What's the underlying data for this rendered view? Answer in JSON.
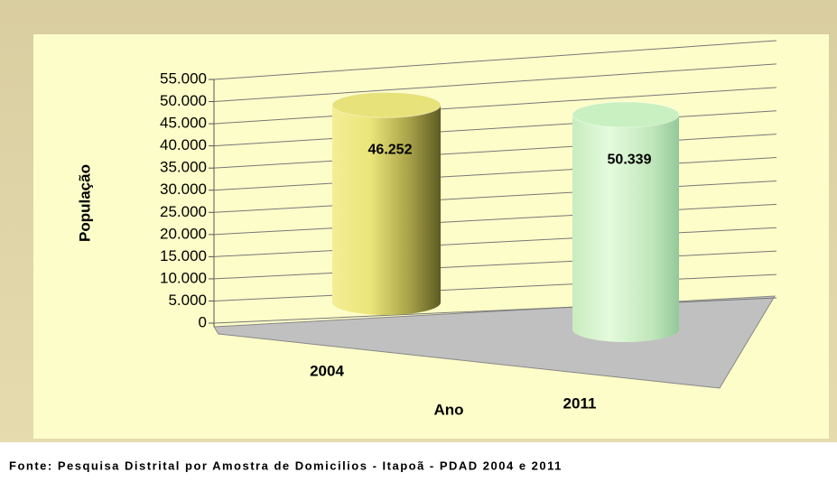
{
  "chart_data": {
    "type": "bar3d-cylinder",
    "categories": [
      "2004",
      "2011"
    ],
    "values": [
      46252,
      50339
    ],
    "value_labels": [
      "46.252",
      "50.339"
    ],
    "colors": [
      "#e8e27a",
      "#c8f0c0"
    ],
    "ylim": [
      0,
      55000
    ],
    "yticks": [
      0,
      {
        "value": 5000,
        "label": "5.000"
      },
      {
        "value": 10000,
        "label": "10.000"
      },
      {
        "value": 15000,
        "label": "15.000"
      },
      {
        "value": 20000,
        "label": "20.000"
      },
      {
        "value": 25000,
        "label": "25.000"
      },
      {
        "value": 30000,
        "label": "30.000"
      },
      {
        "value": 35000,
        "label": "35.000"
      },
      {
        "value": 40000,
        "label": "40.000"
      },
      {
        "value": 45000,
        "label": "45.000"
      },
      {
        "value": 50000,
        "label": "50.000"
      },
      {
        "value": 55000,
        "label": "55.000"
      }
    ],
    "ylabel": "População",
    "xlabel": "Ano",
    "grid": true,
    "source": "Fonte: Pesquisa Distrital por Amostra de Domicilios - Itapoã - PDAD 2004 e 2011"
  }
}
